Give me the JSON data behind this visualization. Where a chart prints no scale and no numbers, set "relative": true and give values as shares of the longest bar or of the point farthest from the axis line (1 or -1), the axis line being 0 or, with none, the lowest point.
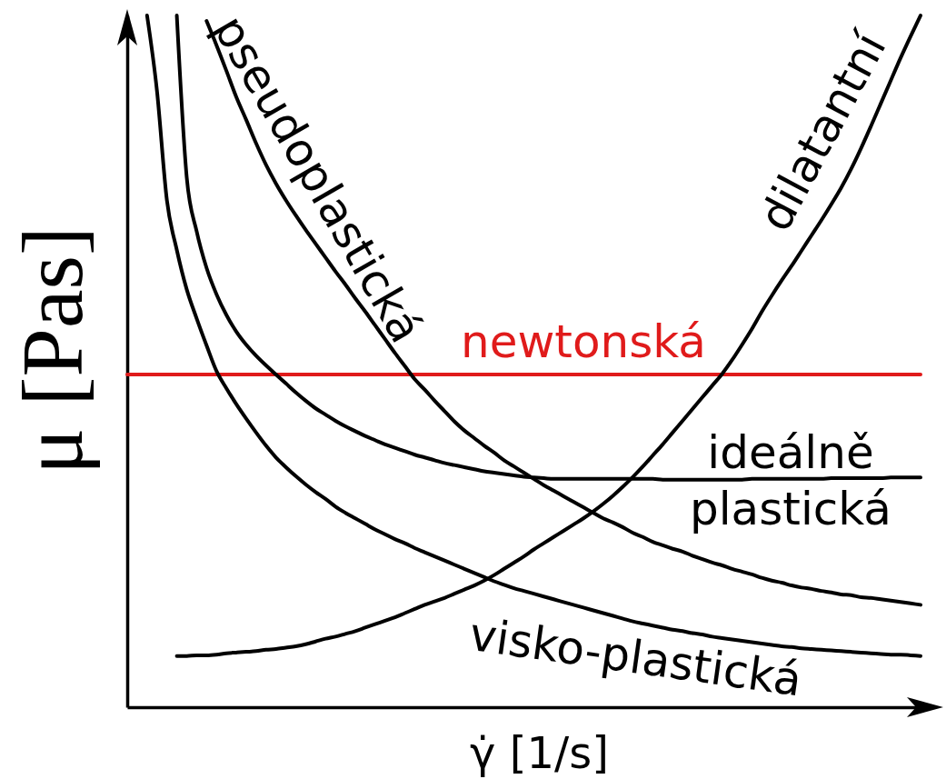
{
  "chart_data": {
    "type": "line",
    "relative": true,
    "xlabel": "γ̇ [1/s]",
    "ylabel": "μ [Pas]",
    "categories": [
      null,
      null,
      null,
      null,
      null,
      null,
      null,
      null,
      null,
      null,
      null,
      null,
      null,
      null,
      null,
      null,
      null,
      null,
      null,
      null,
      null,
      null,
      null,
      null,
      null,
      null,
      null,
      null,
      null,
      null,
      null,
      null,
      null,
      null,
      null,
      null,
      null,
      null,
      null,
      null,
      null,
      null,
      null,
      null,
      null,
      null,
      null,
      null,
      null,
      null,
      null,
      null,
      null,
      null,
      null,
      null,
      null,
      null,
      null,
      null,
      null,
      null,
      null,
      null,
      null,
      null,
      null,
      null,
      null,
      null,
      null,
      null,
      null,
      null,
      null,
      null,
      null,
      null,
      null,
      null,
      null
    ],
    "series": [
      {
        "name": "newtonská",
        "color": "#e01b1b",
        "values": [
          0.481,
          0.481,
          0.481,
          0.481,
          0.481,
          0.481,
          0.481,
          0.481,
          0.481,
          0.481,
          0.481,
          0.481,
          0.481,
          0.481,
          0.481,
          0.481,
          0.481,
          0.481,
          0.481,
          0.481,
          0.481,
          0.481,
          0.481,
          0.481,
          0.481,
          0.481,
          0.481,
          0.481,
          0.481,
          0.481,
          0.481,
          0.481,
          0.481,
          0.481,
          0.481,
          0.481,
          0.481,
          0.481,
          0.481,
          0.481,
          0.481,
          0.481,
          0.481,
          0.481,
          0.481,
          0.481,
          0.481,
          0.481,
          0.481,
          0.481,
          0.481,
          0.481,
          0.481,
          0.481,
          0.481,
          0.481,
          0.481,
          0.481,
          0.481,
          0.481,
          0.481,
          0.481,
          0.481,
          0.481,
          0.481,
          0.481,
          0.481,
          0.481,
          0.481,
          0.481,
          0.481,
          0.481,
          0.481,
          0.481,
          0.481,
          0.481,
          0.481,
          0.481,
          0.481,
          0.481,
          0.481
        ]
      },
      {
        "name": "ideálně plastická",
        "color": "#000000",
        "values": [
          null,
          null,
          null,
          null,
          null,
          1,
          0.766,
          0.688,
          0.635,
          0.597,
          0.567,
          0.543,
          0.524,
          0.508,
          0.494,
          0.481,
          0.468,
          0.455,
          0.443,
          0.432,
          0.423,
          0.414,
          0.406,
          0.399,
          0.392,
          0.386,
          0.38,
          0.375,
          0.37,
          0.365,
          0.361,
          0.357,
          0.353,
          0.35,
          0.347,
          0.344,
          0.341,
          0.339,
          0.337,
          0.335,
          0.333,
          0.332,
          0.331,
          0.33,
          0.33,
          0.33,
          0.33,
          0.33,
          0.33,
          0.33,
          0.33,
          0.33,
          0.33,
          0.33,
          0.329,
          0.329,
          0.329,
          0.329,
          0.329,
          0.329,
          0.329,
          0.329,
          0.329,
          0.33,
          0.33,
          0.33,
          0.33,
          0.33,
          0.33,
          0.33,
          0.33,
          0.331,
          0.331,
          0.331,
          0.331,
          0.331,
          0.331,
          0.332,
          0.332,
          0.332,
          0.332
        ]
      },
      {
        "name": "visko-plastická",
        "color": "#000000",
        "values": [
          null,
          null,
          1,
          0.891,
          0.733,
          0.661,
          0.604,
          0.562,
          0.523,
          0.486,
          0.461,
          0.438,
          0.417,
          0.397,
          0.378,
          0.361,
          0.347,
          0.334,
          0.322,
          0.311,
          0.301,
          0.29,
          0.281,
          0.273,
          0.265,
          0.257,
          0.25,
          0.243,
          0.237,
          0.23,
          0.224,
          0.218,
          0.212,
          0.206,
          0.2,
          0.194,
          0.188,
          0.182,
          0.177,
          0.172,
          0.168,
          0.164,
          0.16,
          0.156,
          0.152,
          0.148,
          0.144,
          0.14,
          0.136,
          0.132,
          0.128,
          0.124,
          0.121,
          0.118,
          0.115,
          0.112,
          0.11,
          0.107,
          0.105,
          0.102,
          0.1,
          0.098,
          0.096,
          0.094,
          0.092,
          0.09,
          0.088,
          0.087,
          0.085,
          0.084,
          0.083,
          0.082,
          0.081,
          0.08,
          0.079,
          0.078,
          0.077,
          0.076,
          0.076,
          0.075,
          0.074
        ]
      },
      {
        "name": "pseudoplastická",
        "color": "#000000",
        "values": [
          null,
          null,
          null,
          null,
          null,
          null,
          null,
          null,
          0.992,
          0.957,
          0.92,
          0.882,
          0.849,
          0.815,
          0.784,
          0.757,
          0.733,
          0.711,
          0.69,
          0.67,
          0.65,
          0.63,
          0.611,
          0.591,
          0.572,
          0.552,
          0.532,
          0.512,
          0.493,
          0.474,
          0.459,
          0.443,
          0.428,
          0.413,
          0.4,
          0.389,
          0.378,
          0.368,
          0.357,
          0.348,
          0.339,
          0.33,
          0.321,
          0.313,
          0.305,
          0.297,
          0.289,
          0.281,
          0.273,
          0.267,
          0.26,
          0.252,
          0.246,
          0.239,
          0.234,
          0.229,
          0.225,
          0.219,
          0.214,
          0.209,
          0.205,
          0.2,
          0.196,
          0.192,
          0.187,
          0.183,
          0.18,
          0.176,
          0.173,
          0.171,
          0.168,
          0.166,
          0.163,
          0.162,
          0.159,
          0.158,
          0.156,
          0.154,
          0.152,
          0.15,
          0.148
        ]
      },
      {
        "name": "dilatantní",
        "color": "#000000",
        "values": [
          null,
          null,
          null,
          null,
          null,
          0.074,
          0.074,
          0.075,
          0.075,
          0.076,
          0.078,
          0.079,
          0.08,
          0.081,
          0.083,
          0.084,
          0.086,
          0.088,
          0.091,
          0.095,
          0.099,
          0.102,
          0.106,
          0.11,
          0.115,
          0.12,
          0.125,
          0.13,
          0.136,
          0.142,
          0.148,
          0.153,
          0.158,
          0.164,
          0.17,
          0.176,
          0.183,
          0.191,
          0.2,
          0.209,
          0.218,
          0.228,
          0.237,
          0.246,
          0.255,
          0.264,
          0.273,
          0.283,
          0.294,
          0.306,
          0.319,
          0.333,
          0.348,
          0.364,
          0.38,
          0.397,
          0.414,
          0.431,
          0.448,
          0.465,
          0.482,
          0.502,
          0.524,
          0.547,
          0.572,
          0.595,
          0.617,
          0.638,
          0.66,
          0.682,
          0.704,
          0.727,
          0.751,
          0.778,
          0.808,
          0.84,
          0.873,
          0.906,
          0.939,
          0.97,
          1.0
        ]
      }
    ]
  }
}
